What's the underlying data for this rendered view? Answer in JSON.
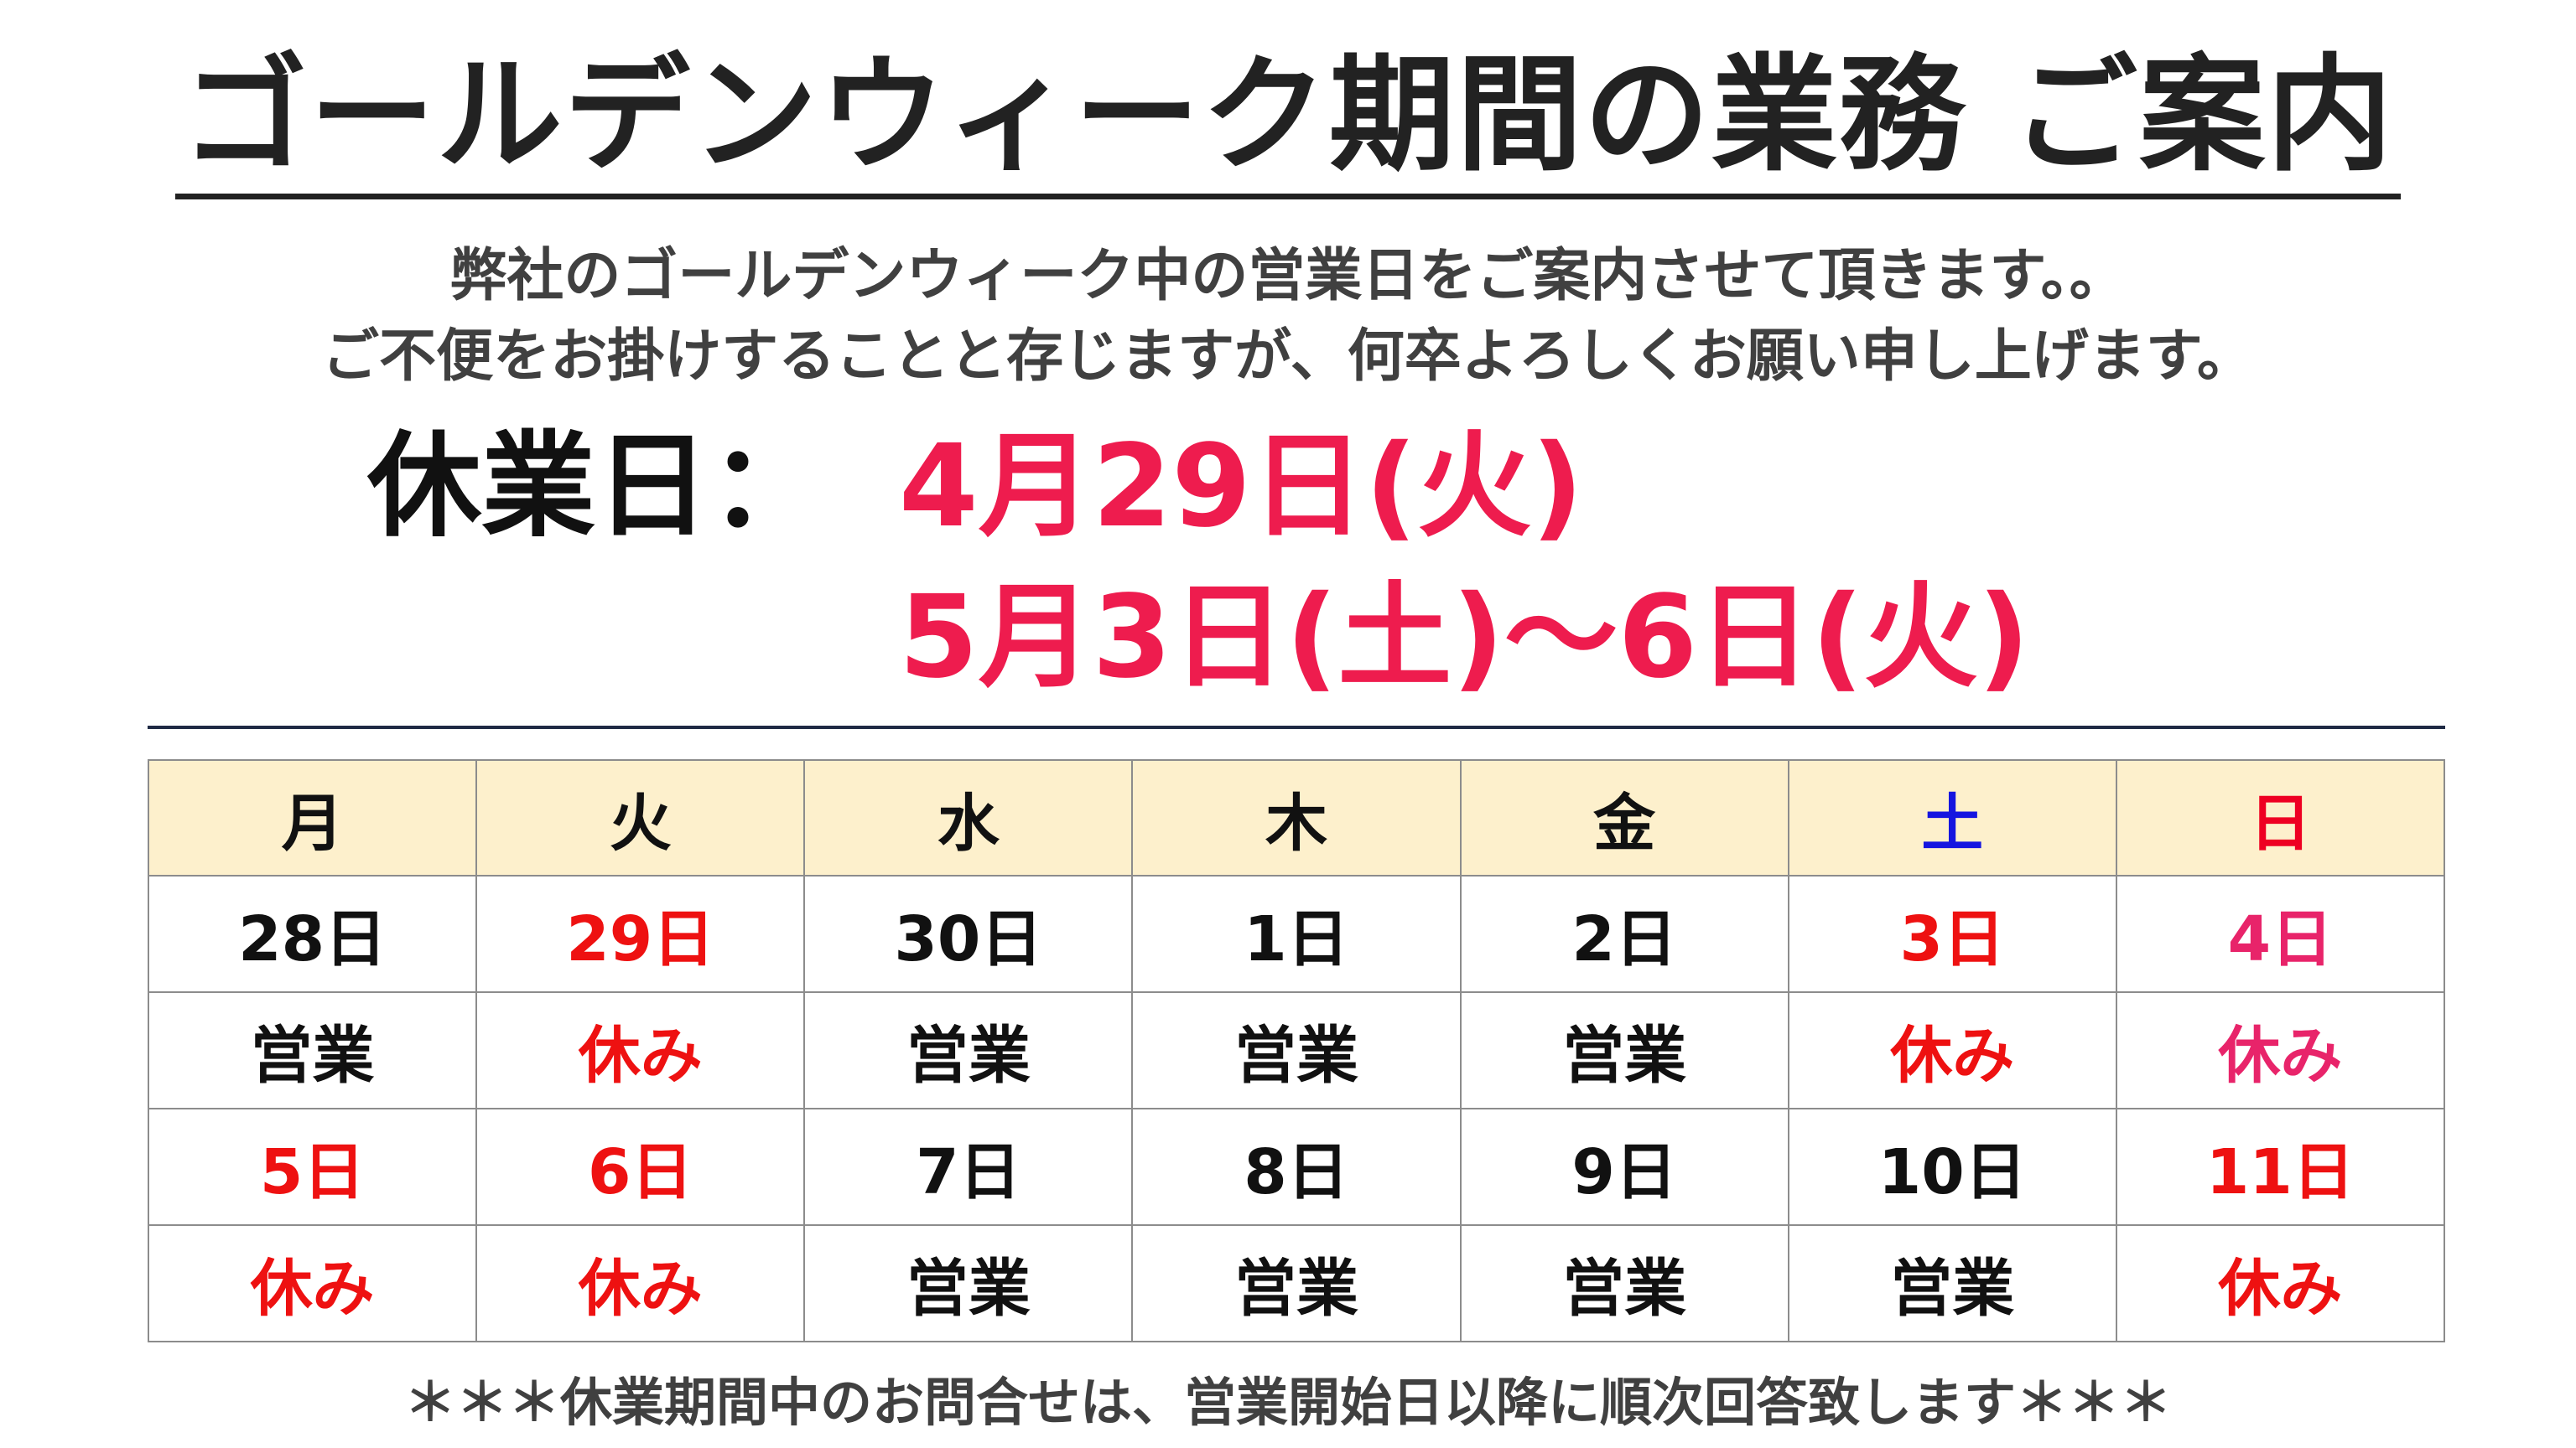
{
  "title": "ゴールデンウィーク期間の業務 ご案内",
  "intro": {
    "line1": "弊社のゴールデンウィーク中の営業日をご案内させて頂きます。。",
    "line2": "ご不便をお掛けすることと存じますが、何卒よろしくお願い申し上げます。"
  },
  "closed": {
    "label": "休業日：",
    "dates": [
      "4月29日(火)",
      "5月3日(土)～6日(火)"
    ]
  },
  "calendar": {
    "weekdays": [
      "月",
      "火",
      "水",
      "木",
      "金",
      "土",
      "日"
    ],
    "weeks": [
      {
        "days": [
          "28日",
          "29日",
          "30日",
          "1日",
          "2日",
          "3日",
          "4日"
        ],
        "status": [
          "営業",
          "休み",
          "営業",
          "営業",
          "営業",
          "休み",
          "休み"
        ]
      },
      {
        "days": [
          "5日",
          "6日",
          "7日",
          "8日",
          "9日",
          "10日",
          "11日"
        ],
        "status": [
          "休み",
          "休み",
          "営業",
          "営業",
          "営業",
          "営業",
          "休み"
        ]
      }
    ]
  },
  "footer": "＊＊＊休業期間中のお問合せは、営業開始日以降に順次回答致します＊＊＊",
  "colors": {
    "closed_date_text": "#ee1c4e",
    "closed_cell_bg": "#00ffff",
    "closed_cell_text": "#ee1111",
    "header_bg": "#fdf0cc",
    "saturday_header_bg": "#dde7f4",
    "saturday_header_text": "#1515e0",
    "sunday_header_bg": "#fcccf8",
    "sunday_header_text": "#ee0022"
  }
}
